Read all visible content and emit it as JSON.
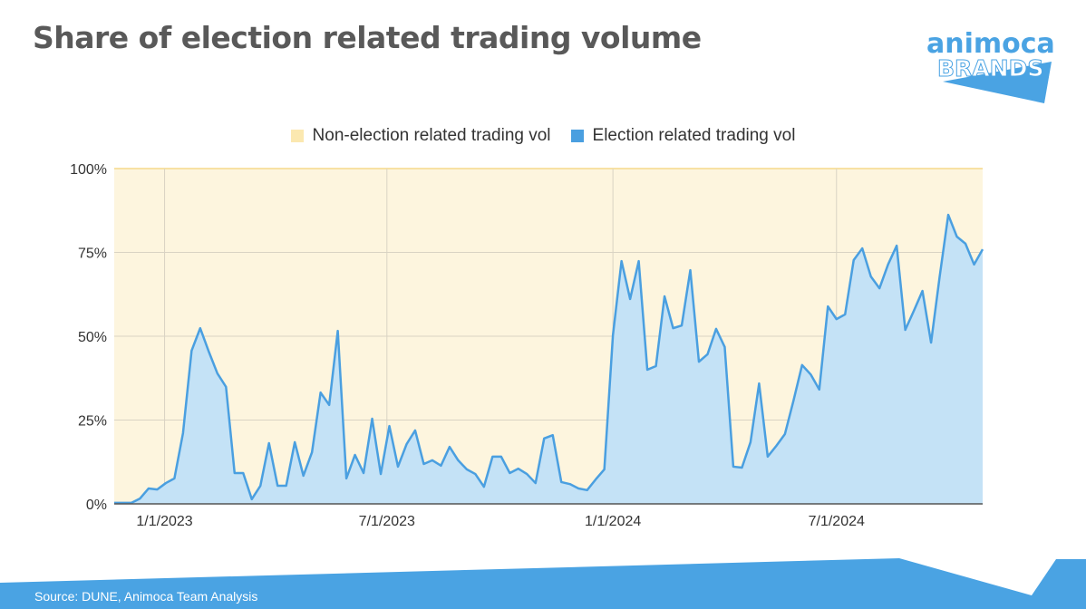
{
  "title": "Share of election related trading volume",
  "logo": {
    "line1": "animoca",
    "line2": "BRANDS",
    "color": "#4aa3e3"
  },
  "source": "Source: DUNE, Animoca Team Analysis",
  "colors": {
    "election": "#4a9fe0",
    "election_fill": "#c4e2f6",
    "non_election": "#fdf5de",
    "non_election_swatch": "#fbe8b0",
    "footer": "#4aa3e3"
  },
  "chart_data": {
    "type": "area",
    "stacked_percent": true,
    "x_frequency": "weekly",
    "xlim": [
      "2022-11-21",
      "2024-10-28"
    ],
    "x_ticks": [
      "1/1/2023",
      "7/1/2023",
      "1/1/2024",
      "7/1/2024"
    ],
    "y_ticks": [
      "0%",
      "25%",
      "50%",
      "75%",
      "100%"
    ],
    "ylim": [
      0,
      100
    ],
    "grid": true,
    "legend_position": "top",
    "series": [
      {
        "name": "Non-election related trading vol",
        "values_note": "remainder to 100%"
      },
      {
        "name": "Election related trading vol",
        "values": [
          0.3,
          0.3,
          0.3,
          1.6,
          4.6,
          4.3,
          6.2,
          7.6,
          21.1,
          45.7,
          52.4,
          45.4,
          38.9,
          34.9,
          9.2,
          9.2,
          1.4,
          5.4,
          18.1,
          5.4,
          5.4,
          18.4,
          8.4,
          15.4,
          33.2,
          29.5,
          51.6,
          7.6,
          14.6,
          9.2,
          25.4,
          8.9,
          23.2,
          11.1,
          17.8,
          21.9,
          11.9,
          13.0,
          11.4,
          17.0,
          13.0,
          10.3,
          8.9,
          5.1,
          14.1,
          14.1,
          9.2,
          10.5,
          8.9,
          6.2,
          19.5,
          20.5,
          6.5,
          5.9,
          4.6,
          4.1,
          7.3,
          10.3,
          50.3,
          72.4,
          61.1,
          72.4,
          40.0,
          41.1,
          61.9,
          52.4,
          53.2,
          69.7,
          42.4,
          44.6,
          52.2,
          46.8,
          11.1,
          10.8,
          18.4,
          35.9,
          14.1,
          17.3,
          20.8,
          30.8,
          41.4,
          38.6,
          34.1,
          58.9,
          55.1,
          56.5,
          72.7,
          76.2,
          67.8,
          64.3,
          71.4,
          77.0,
          51.9,
          57.6,
          63.5,
          48.1,
          67.8,
          86.2,
          79.7,
          77.6,
          71.4,
          75.9
        ]
      }
    ]
  }
}
